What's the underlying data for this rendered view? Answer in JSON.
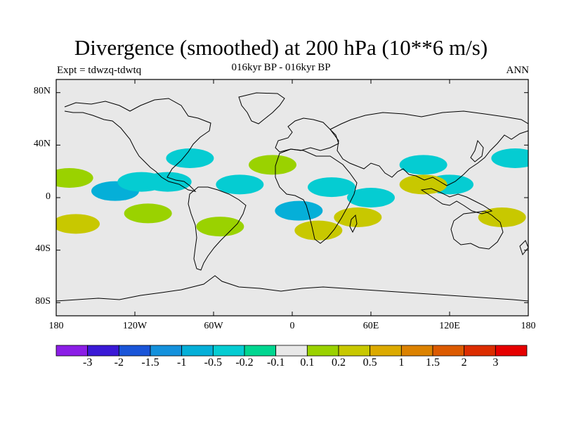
{
  "figure": {
    "title": "Divergence (smoothed) at 200 hPa (10**6 m/s)",
    "experiment": "Expt = tdwzq-tdwtq",
    "subtitle": "016kyr BP - 016kyr BP",
    "season": "ANN"
  },
  "axes": {
    "lat_ticks": [
      "80N",
      "40N",
      "0",
      "40S",
      "80S"
    ],
    "lon_ticks": [
      "180",
      "120W",
      "60W",
      "0",
      "60E",
      "120E",
      "180"
    ]
  },
  "colorbar": {
    "labels": [
      "-3",
      "-2",
      "-1.5",
      "-1",
      "-0.5",
      "-0.2",
      "-0.1",
      "0.1",
      "0.2",
      "0.5",
      "1",
      "1.5",
      "2",
      "3"
    ],
    "colors": [
      "#8b1ee6",
      "#3a19d6",
      "#1a55d8",
      "#1491dc",
      "#05afd8",
      "#05ccd2",
      "#00d690",
      "#e8e8e8",
      "#9ad200",
      "#c8c800",
      "#dcaa00",
      "#dc8200",
      "#dc5a00",
      "#dc2d00",
      "#e60000"
    ]
  },
  "map_style": {
    "ocean": "#e8e8e8",
    "coast": "#000000"
  },
  "chart_data": {
    "type": "heatmap",
    "title": "Divergence (smoothed) at 200 hPa (10**6 m/s)",
    "xlabel": "",
    "ylabel": "",
    "lon_range": [
      -180,
      180
    ],
    "lat_range": [
      -90,
      90
    ],
    "levels": [
      -3,
      -2,
      -1.5,
      -1,
      -0.5,
      -0.2,
      -0.1,
      0.1,
      0.2,
      0.5,
      1,
      1.5,
      2,
      3
    ],
    "shaded_regions": [
      {
        "lon": -135,
        "lat": 5,
        "value": -0.5
      },
      {
        "lon": -115,
        "lat": 12,
        "value": -0.2
      },
      {
        "lon": -95,
        "lat": 12,
        "value": -0.2
      },
      {
        "lon": -78,
        "lat": 30,
        "value": -0.2
      },
      {
        "lon": -40,
        "lat": 10,
        "value": -0.2
      },
      {
        "lon": 5,
        "lat": -10,
        "value": -0.5
      },
      {
        "lon": 30,
        "lat": 8,
        "value": -0.2
      },
      {
        "lon": 60,
        "lat": 0,
        "value": -0.2
      },
      {
        "lon": 100,
        "lat": 25,
        "value": -0.2
      },
      {
        "lon": 120,
        "lat": 10,
        "value": -0.2
      },
      {
        "lon": 170,
        "lat": 30,
        "value": -0.2
      },
      {
        "lon": -170,
        "lat": 15,
        "value": 0.2
      },
      {
        "lon": -165,
        "lat": -20,
        "value": 0.5
      },
      {
        "lon": -110,
        "lat": -12,
        "value": 0.2
      },
      {
        "lon": -55,
        "lat": -22,
        "value": 0.2
      },
      {
        "lon": -15,
        "lat": 25,
        "value": 0.2
      },
      {
        "lon": 20,
        "lat": -25,
        "value": 0.5
      },
      {
        "lon": 50,
        "lat": -15,
        "value": 0.5
      },
      {
        "lon": 100,
        "lat": 10,
        "value": 0.5
      },
      {
        "lon": 160,
        "lat": -15,
        "value": 0.5
      }
    ]
  }
}
